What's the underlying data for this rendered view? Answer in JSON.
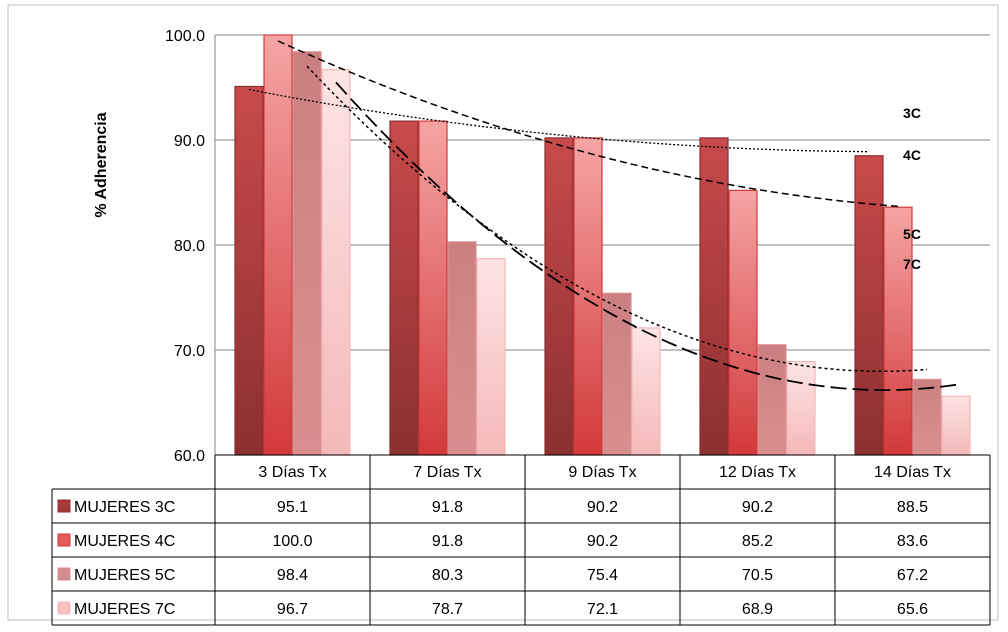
{
  "chart_data": {
    "type": "bar",
    "ylabel": "% Adherencia",
    "ylim": [
      60,
      100
    ],
    "yticks": [
      "100.0",
      "90.0",
      "80.0",
      "70.0",
      "60.0"
    ],
    "categories": [
      "3 Días Tx",
      "7 Días Tx",
      "9 Días Tx",
      "12 Días Tx",
      "14 Días Tx"
    ],
    "series": [
      {
        "name": "MUJERES 3C",
        "values": [
          95.1,
          91.8,
          90.2,
          90.2,
          88.5
        ],
        "labels": [
          "95.1",
          "91.8",
          "90.2",
          "90.2",
          "88.5"
        ],
        "color_dark": "#8b2f30",
        "color_light": "#c84a4b",
        "legend_color": "#a83a3c"
      },
      {
        "name": "MUJERES 4C",
        "values": [
          100.0,
          91.8,
          90.2,
          85.2,
          83.6
        ],
        "labels": [
          "100.0",
          "91.8",
          "90.2",
          "85.2",
          "83.6"
        ],
        "color_dark": "#d2393b",
        "color_light": "#f5a4a4",
        "legend_color": "#e45b5c"
      },
      {
        "name": "MUJERES 5C",
        "values": [
          98.4,
          80.3,
          75.4,
          70.5,
          67.2
        ],
        "labels": [
          "98.4",
          "80.3",
          "75.4",
          "70.5",
          "67.2"
        ],
        "color_dark": "#d98f90",
        "color_light": "#cc7f81",
        "legend_color": "#d08c8e"
      },
      {
        "name": "MUJERES 7C",
        "values": [
          96.7,
          78.7,
          72.1,
          68.9,
          65.6
        ],
        "labels": [
          "96.7",
          "78.7",
          "72.1",
          "68.9",
          "65.6"
        ],
        "color_dark": "#f5b8b8",
        "color_light": "#fde4e4",
        "legend_color": "#f6c0c0"
      }
    ],
    "trendline_labels": [
      "3C",
      "4C",
      "5C",
      "7C"
    ],
    "grid": true,
    "legend": "data-table"
  }
}
